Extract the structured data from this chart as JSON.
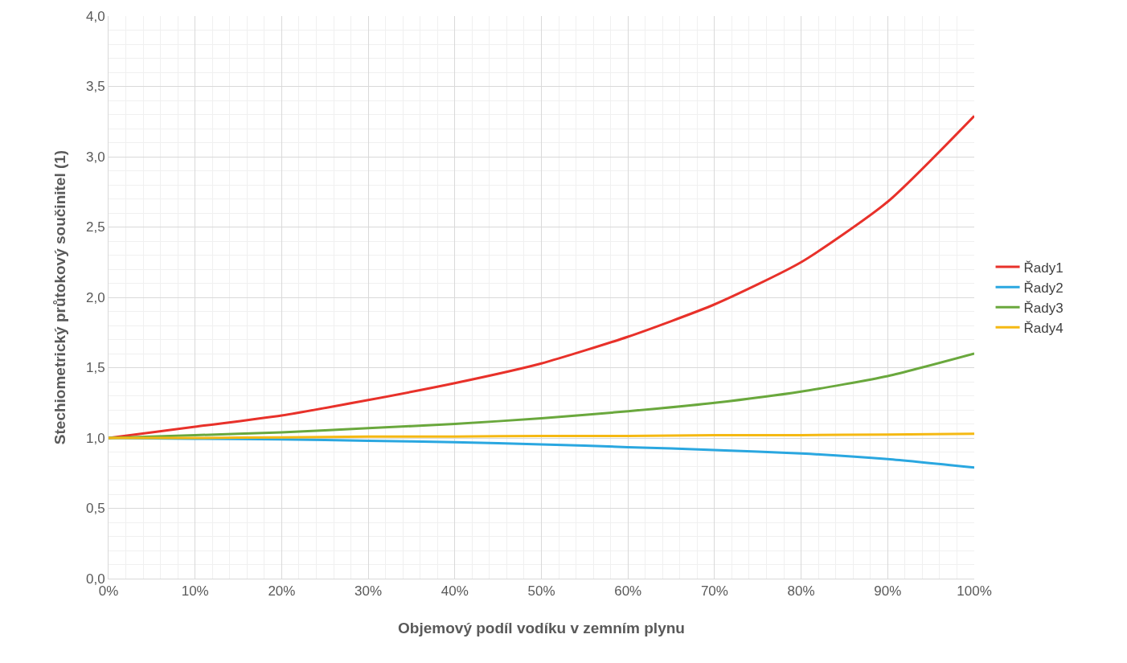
{
  "chart_data": {
    "type": "line",
    "xlabel": "Objemový podíl vodíku v zemním plynu",
    "ylabel": "Stechiometrický průtokový součinitel (1)",
    "x": [
      0,
      10,
      20,
      30,
      40,
      50,
      60,
      70,
      80,
      90,
      100
    ],
    "series": [
      {
        "name": "Řady1",
        "color": "#e8312a",
        "values": [
          1.0,
          1.08,
          1.16,
          1.27,
          1.39,
          1.53,
          1.72,
          1.95,
          2.25,
          2.68,
          3.29
        ]
      },
      {
        "name": "Řady2",
        "color": "#2aa7e0",
        "values": [
          1.0,
          0.995,
          0.99,
          0.98,
          0.97,
          0.955,
          0.935,
          0.915,
          0.89,
          0.85,
          0.79
        ]
      },
      {
        "name": "Řady3",
        "color": "#6aa83d",
        "values": [
          1.0,
          1.02,
          1.04,
          1.07,
          1.1,
          1.14,
          1.19,
          1.25,
          1.33,
          1.44,
          1.6
        ]
      },
      {
        "name": "Řady4",
        "color": "#f5b913",
        "values": [
          1.0,
          1.0,
          1.005,
          1.01,
          1.01,
          1.015,
          1.015,
          1.02,
          1.02,
          1.025,
          1.03
        ]
      }
    ],
    "xlim": [
      0,
      100
    ],
    "xticks": [
      {
        "value": 0,
        "label": "0%"
      },
      {
        "value": 10,
        "label": "10%"
      },
      {
        "value": 20,
        "label": "20%"
      },
      {
        "value": 30,
        "label": "30%"
      },
      {
        "value": 40,
        "label": "40%"
      },
      {
        "value": 50,
        "label": "50%"
      },
      {
        "value": 60,
        "label": "60%"
      },
      {
        "value": 70,
        "label": "70%"
      },
      {
        "value": 80,
        "label": "80%"
      },
      {
        "value": 90,
        "label": "90%"
      },
      {
        "value": 100,
        "label": "100%"
      }
    ],
    "ylim": [
      0,
      4
    ],
    "yticks": [
      {
        "value": 0,
        "label": "0,0"
      },
      {
        "value": 0.5,
        "label": "0,5"
      },
      {
        "value": 1,
        "label": "1,0"
      },
      {
        "value": 1.5,
        "label": "1,5"
      },
      {
        "value": 2,
        "label": "2,0"
      },
      {
        "value": 2.5,
        "label": "2,5"
      },
      {
        "value": 3,
        "label": "3,0"
      },
      {
        "value": 3.5,
        "label": "3,5"
      },
      {
        "value": 4,
        "label": "4,0"
      }
    ],
    "grid": true,
    "legend": "right",
    "marker": "none",
    "line_style": "solid"
  }
}
